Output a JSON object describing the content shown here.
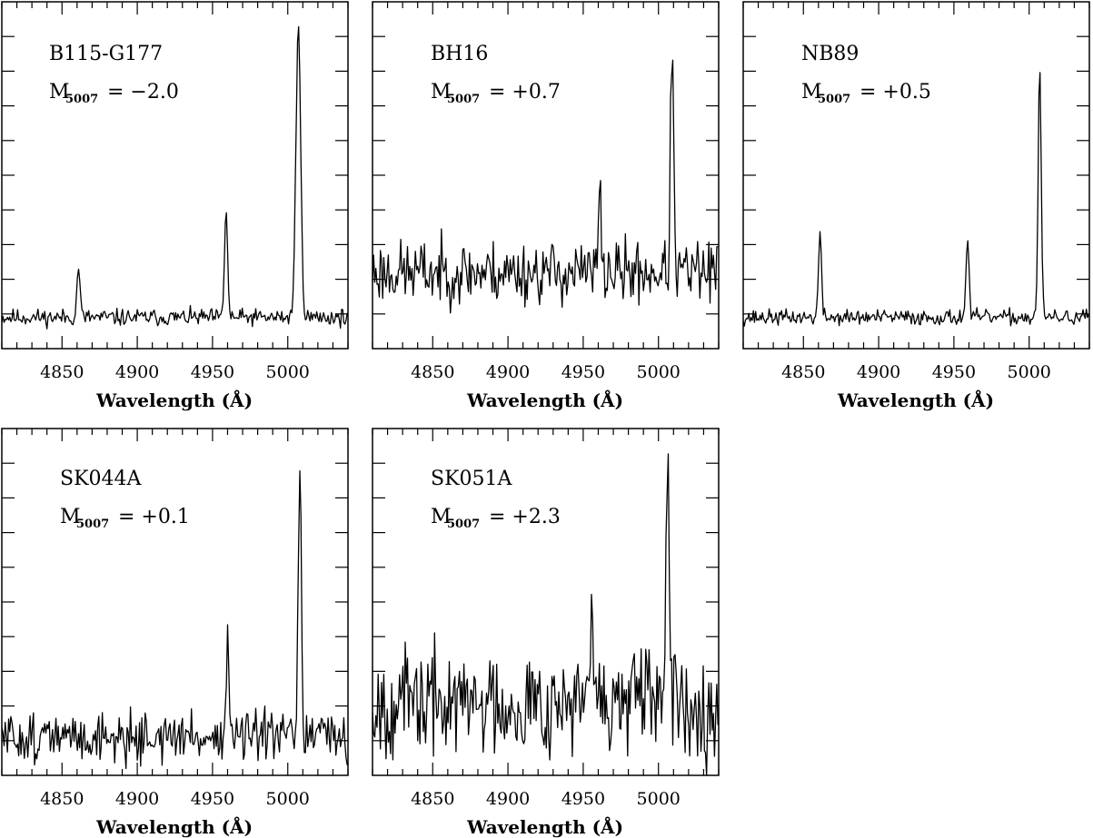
{
  "chart_data": [
    {
      "type": "line",
      "name": "B115-G177",
      "magnitude_symbol": "M",
      "magnitude_subscript": "5007",
      "magnitude_value": "= −2.0",
      "xlabel": "Wavelength (Å)",
      "ylabel": "",
      "xlim": [
        4810,
        5040
      ],
      "ylim": [
        0,
        1
      ],
      "xticks": [
        "4850",
        "4900",
        "4950",
        "5000"
      ],
      "baseline": 0.09,
      "noise": 0.012,
      "seed": 11,
      "lines": [
        {
          "x": 4861,
          "peak": 0.24,
          "width": 1.0
        },
        {
          "x": 4959,
          "peak": 0.41,
          "width": 1.0
        },
        {
          "x": 5007,
          "peak": 0.92,
          "width": 1.6
        }
      ]
    },
    {
      "type": "line",
      "name": "BH16",
      "magnitude_symbol": "M",
      "magnitude_subscript": "5007",
      "magnitude_value": "= +0.7",
      "xlabel": "Wavelength (Å)",
      "ylabel": "",
      "xlim": [
        4810,
        5040
      ],
      "ylim": [
        0,
        1
      ],
      "xticks": [
        "4850",
        "4900",
        "4950",
        "5000"
      ],
      "baseline": 0.22,
      "noise": 0.045,
      "seed": 23,
      "lines": [
        {
          "x": 4961,
          "peak": 0.43,
          "width": 1.0
        },
        {
          "x": 5009,
          "peak": 0.88,
          "width": 1.0
        }
      ]
    },
    {
      "type": "line",
      "name": "NB89",
      "magnitude_symbol": "M",
      "magnitude_subscript": "5007",
      "magnitude_value": "= +0.5",
      "xlabel": "Wavelength (Å)",
      "ylabel": "",
      "xlim": [
        4810,
        5040
      ],
      "ylim": [
        0,
        1
      ],
      "xticks": [
        "4850",
        "4900",
        "4950",
        "5000"
      ],
      "baseline": 0.09,
      "noise": 0.011,
      "seed": 37,
      "lines": [
        {
          "x": 4861,
          "peak": 0.33,
          "width": 1.0
        },
        {
          "x": 4959,
          "peak": 0.32,
          "width": 1.0
        },
        {
          "x": 5007,
          "peak": 0.82,
          "width": 1.0
        }
      ]
    },
    {
      "type": "line",
      "name": "SK044A",
      "magnitude_symbol": "M",
      "magnitude_subscript": "5007",
      "magnitude_value": "= +0.1",
      "xlabel": "Wavelength (Å)",
      "ylabel": "",
      "xlim": [
        4810,
        5040
      ],
      "ylim": [
        0,
        1
      ],
      "xticks": [
        "4850",
        "4900",
        "4950",
        "5000"
      ],
      "baseline": 0.11,
      "noise": 0.035,
      "seed": 51,
      "lines": [
        {
          "x": 4960,
          "peak": 0.38,
          "width": 1.0
        },
        {
          "x": 5008,
          "peak": 0.91,
          "width": 1.0
        }
      ]
    },
    {
      "type": "line",
      "name": "SK051A",
      "magnitude_symbol": "M",
      "magnitude_subscript": "5007",
      "magnitude_value": "= +2.3",
      "xlabel": "Wavelength (Å)",
      "ylabel": "",
      "xlim": [
        4810,
        5040
      ],
      "ylim": [
        0,
        1
      ],
      "xticks": [
        "4850",
        "4900",
        "4950",
        "5000"
      ],
      "baseline": 0.21,
      "noise": 0.075,
      "seed": 67,
      "lines": [
        {
          "x": 4956,
          "peak": 0.44,
          "width": 1.0
        },
        {
          "x": 5006,
          "peak": 0.88,
          "width": 1.0
        }
      ]
    }
  ]
}
